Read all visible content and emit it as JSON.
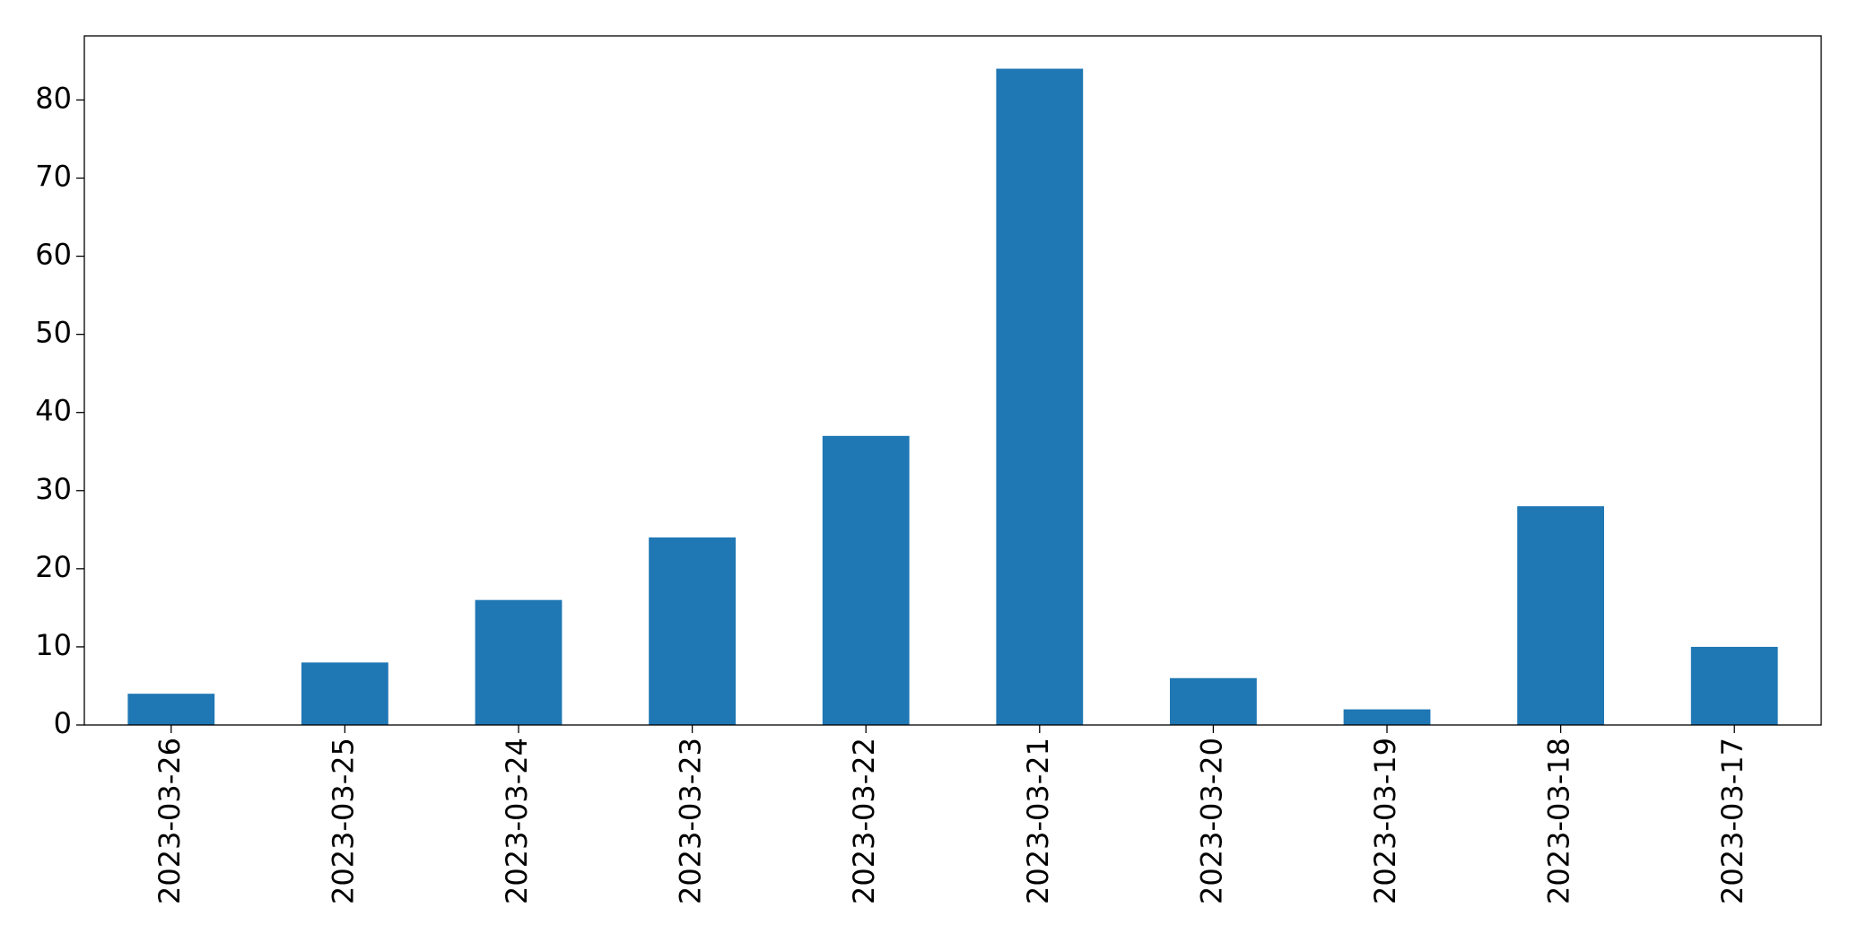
{
  "chart_data": {
    "type": "bar",
    "categories": [
      "2023-03-26",
      "2023-03-25",
      "2023-03-24",
      "2023-03-23",
      "2023-03-22",
      "2023-03-21",
      "2023-03-20",
      "2023-03-19",
      "2023-03-18",
      "2023-03-17"
    ],
    "values": [
      4,
      8,
      16,
      24,
      37,
      84,
      6,
      2,
      28,
      10
    ],
    "color": "#1f77b4",
    "ylim": [
      0,
      88.2
    ],
    "yticks": [
      0,
      10,
      20,
      30,
      40,
      50,
      60,
      70,
      80
    ],
    "grid": false
  }
}
